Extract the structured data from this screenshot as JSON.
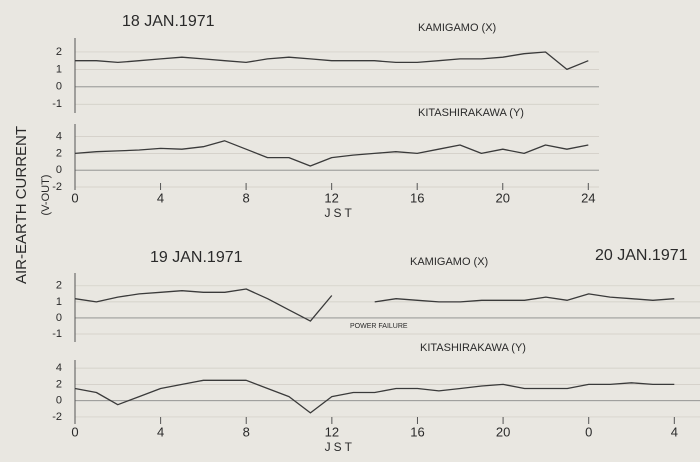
{
  "ylabel": "AIR-EARTH CURRENT",
  "yunit": "(V-OUT)",
  "chart_data": [
    {
      "type": "line",
      "date": "18 JAN.1971",
      "title": "KAMIGAMO (X)",
      "color": "#3a3a3a",
      "x": [
        0,
        1,
        2,
        3,
        4,
        5,
        6,
        7,
        8,
        9,
        10,
        11,
        12,
        13,
        14,
        15,
        16,
        17,
        18,
        19,
        20,
        21,
        22,
        23,
        24
      ],
      "values": [
        1.5,
        1.5,
        1.4,
        1.5,
        1.6,
        1.7,
        1.6,
        1.5,
        1.4,
        1.6,
        1.7,
        1.6,
        1.5,
        1.5,
        1.5,
        1.4,
        1.4,
        1.5,
        1.6,
        1.6,
        1.7,
        1.9,
        2.0,
        1.0,
        1.5
      ],
      "xlim": [
        0,
        24.5
      ],
      "ylim": [
        -1.5,
        2.8
      ],
      "yticks": [
        2,
        1,
        0,
        -1
      ],
      "grid": true
    },
    {
      "type": "line",
      "title": "KITASHIRAKAWA (Y)",
      "color": "#3a3a3a",
      "x": [
        0,
        1,
        2,
        3,
        4,
        5,
        6,
        7,
        8,
        9,
        10,
        11,
        12,
        13,
        14,
        15,
        16,
        17,
        18,
        19,
        20,
        21,
        22,
        23,
        24
      ],
      "values": [
        2,
        2.2,
        2.3,
        2.4,
        2.6,
        2.5,
        2.8,
        3.5,
        2.5,
        1.5,
        1.5,
        0.5,
        1.5,
        1.8,
        2.0,
        2.2,
        2.0,
        2.5,
        3.0,
        2.0,
        2.5,
        2.0,
        3.0,
        2.5,
        3.0
      ],
      "xlim": [
        0,
        24.5
      ],
      "ylim": [
        -2,
        5.5
      ],
      "yticks": [
        4,
        2,
        0,
        -2
      ],
      "xticks": [
        0,
        4,
        8,
        12,
        16,
        20,
        24
      ],
      "xlabel": "JST",
      "grid": true
    },
    {
      "type": "line",
      "date": "19 JAN.1971",
      "date2": "20 JAN.1971",
      "title": "KAMIGAMO (X)",
      "annotation": "POWER FAILURE",
      "color": "#3a3a3a",
      "x": [
        0,
        1,
        2,
        3,
        4,
        5,
        6,
        7,
        8,
        9,
        10,
        11,
        12,
        13,
        14,
        15,
        16,
        17,
        18,
        19,
        20,
        21,
        22,
        23,
        24,
        25,
        26,
        27,
        28
      ],
      "values": [
        1.2,
        1.0,
        1.3,
        1.5,
        1.6,
        1.7,
        1.6,
        1.6,
        1.8,
        1.2,
        0.5,
        -0.2,
        1.4,
        null,
        1.0,
        1.2,
        1.1,
        1.0,
        1.0,
        1.1,
        1.1,
        1.1,
        1.3,
        1.1,
        1.5,
        1.3,
        1.2,
        1.1,
        1.2
      ],
      "xlim": [
        0,
        29.2
      ],
      "ylim": [
        -1.5,
        2.8
      ],
      "yticks": [
        2,
        1,
        0,
        -1
      ],
      "grid": true
    },
    {
      "type": "line",
      "title": "KITASHIRAKAWA (Y)",
      "color": "#3a3a3a",
      "x": [
        0,
        1,
        2,
        3,
        4,
        5,
        6,
        7,
        8,
        9,
        10,
        11,
        12,
        13,
        14,
        15,
        16,
        17,
        18,
        19,
        20,
        21,
        22,
        23,
        24,
        25,
        26,
        27,
        28
      ],
      "values": [
        1.5,
        1.0,
        -0.5,
        0.5,
        1.5,
        2.0,
        2.5,
        2.5,
        2.5,
        1.5,
        0.5,
        -1.5,
        0.5,
        1.0,
        1.0,
        1.5,
        1.5,
        1.2,
        1.5,
        1.8,
        2.0,
        1.5,
        1.5,
        1.5,
        2.0,
        2.0,
        2.2,
        2.0,
        2.0
      ],
      "xlim": [
        0,
        29.2
      ],
      "ylim": [
        -2.5,
        5
      ],
      "yticks": [
        4,
        2,
        0,
        -2
      ],
      "xticks": [
        0,
        4,
        8,
        12,
        16,
        20,
        {
          "value": 24,
          "label": "0"
        },
        {
          "value": 28,
          "label": "4"
        }
      ],
      "xlabel": "JST",
      "grid": true
    }
  ]
}
